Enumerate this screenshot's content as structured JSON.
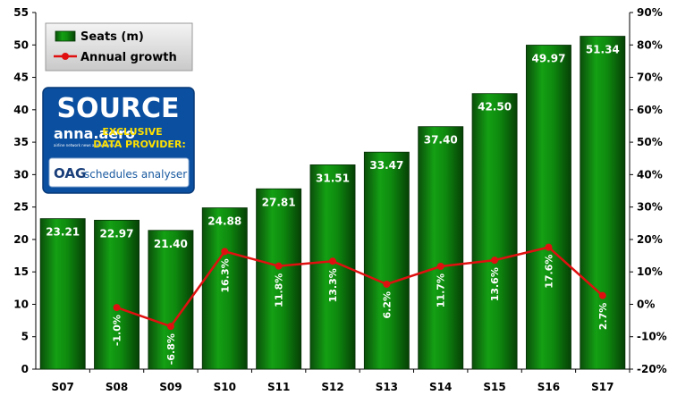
{
  "chart_data": {
    "type": "bar",
    "categories": [
      "S07",
      "S08",
      "S09",
      "S10",
      "S11",
      "S12",
      "S13",
      "S14",
      "S15",
      "S16",
      "S17"
    ],
    "series": [
      {
        "name": "Seats (m)",
        "type": "bar",
        "axis": "left",
        "color": "#0b7a0b",
        "values": [
          23.21,
          22.97,
          21.4,
          24.88,
          27.81,
          31.51,
          33.47,
          37.4,
          42.5,
          49.97,
          51.34
        ],
        "labels": [
          "23.21",
          "22.97",
          "21.40",
          "24.88",
          "27.81",
          "31.51",
          "33.47",
          "37.40",
          "42.50",
          "49.97",
          "51.34"
        ]
      },
      {
        "name": "Annual growth",
        "type": "line",
        "axis": "right",
        "color": "#e01010",
        "values": [
          null,
          -1.0,
          -6.8,
          16.3,
          11.8,
          13.3,
          6.2,
          11.7,
          13.6,
          17.6,
          2.7
        ],
        "labels": [
          "",
          "-1.0%",
          "-6.8%",
          "16.3%",
          "11.8%",
          "13.3%",
          "6.2%",
          "11.7%",
          "13.6%",
          "17.6%",
          "2.7%"
        ]
      }
    ],
    "y_left": {
      "min": 0,
      "max": 55,
      "step": 5,
      "ticks": [
        "0",
        "5",
        "10",
        "15",
        "20",
        "25",
        "30",
        "35",
        "40",
        "45",
        "50",
        "55"
      ]
    },
    "y_right": {
      "min": -20,
      "max": 90,
      "step": 10,
      "ticks": [
        "-20%",
        "-10%",
        "0%",
        "10%",
        "20%",
        "30%",
        "40%",
        "50%",
        "60%",
        "70%",
        "80%",
        "90%"
      ]
    },
    "grid": false,
    "legend_position": "top-left"
  },
  "source_badge": {
    "title": "SOURCE",
    "brand": "anna.aero",
    "tagline": "airline network news and analysis",
    "exclusive": "EXCLUSIVE",
    "provider": "DATA PROVIDER:",
    "oag": "OAG",
    "oag_product": "schedules analyser",
    "colors": {
      "blue": "#0b4fa0",
      "yellow": "#ffe100"
    }
  }
}
